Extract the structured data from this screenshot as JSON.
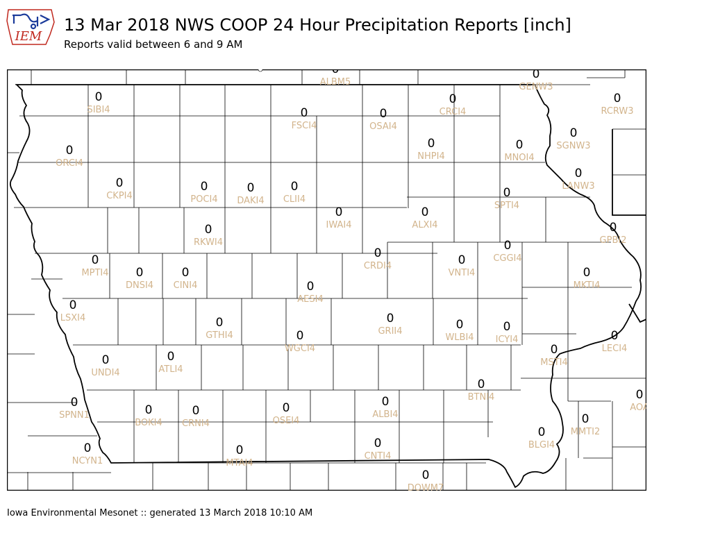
{
  "header": {
    "logo_text": "IEM",
    "title": "13 Mar 2018 NWS COOP 24 Hour Precipitation Reports [inch]",
    "subtitle": "Reports valid between 6 and 9 AM"
  },
  "footer": {
    "text": "Iowa Environmental Mesonet :: generated 13 March 2018 10:10 AM"
  },
  "colors": {
    "station_id": "#d2b48c",
    "value": "#000000",
    "logo_red": "#c0281e",
    "logo_blue": "#1a3a9a"
  },
  "stations": [
    {
      "id": "ALBM5",
      "value": "0"
    },
    {
      "id": "GENW3",
      "value": "0"
    },
    {
      "id": "SIBI4",
      "value": "0"
    },
    {
      "id": "FSCI4",
      "value": "0"
    },
    {
      "id": "OSAI4",
      "value": "0"
    },
    {
      "id": "CRCI4",
      "value": "0"
    },
    {
      "id": "RCRW3",
      "value": "0"
    },
    {
      "id": "ORCI4",
      "value": "0"
    },
    {
      "id": "NHPI4",
      "value": "0"
    },
    {
      "id": "MNOI4",
      "value": "0"
    },
    {
      "id": "SGNW3",
      "value": "0"
    },
    {
      "id": "LANW3",
      "value": "0"
    },
    {
      "id": "CKPI4",
      "value": "0"
    },
    {
      "id": "POCI4",
      "value": "0"
    },
    {
      "id": "DAKI4",
      "value": "0"
    },
    {
      "id": "CLII4",
      "value": "0"
    },
    {
      "id": "SPTI4",
      "value": "0"
    },
    {
      "id": "IWAI4",
      "value": "0"
    },
    {
      "id": "ALXI4",
      "value": "0"
    },
    {
      "id": "RKWI4",
      "value": "0"
    },
    {
      "id": "GPBI2",
      "value": "0"
    },
    {
      "id": "CRDI4",
      "value": "0"
    },
    {
      "id": "CGGI4",
      "value": "0"
    },
    {
      "id": "MPTI4",
      "value": "0"
    },
    {
      "id": "VNTI4",
      "value": "0"
    },
    {
      "id": "DNSI4",
      "value": "0"
    },
    {
      "id": "CINI4",
      "value": "0"
    },
    {
      "id": "MKTI4",
      "value": "0"
    },
    {
      "id": "AESI4",
      "value": "0"
    },
    {
      "id": "LSXI4",
      "value": "0"
    },
    {
      "id": "GRII4",
      "value": "0"
    },
    {
      "id": "GTHI4",
      "value": "0"
    },
    {
      "id": "WLBI4",
      "value": "0"
    },
    {
      "id": "ICYI4",
      "value": "0"
    },
    {
      "id": "WGCI4",
      "value": "0"
    },
    {
      "id": "LECI4",
      "value": "0"
    },
    {
      "id": "ATLI4",
      "value": "0"
    },
    {
      "id": "MSTI4",
      "value": "0"
    },
    {
      "id": "UNDI4",
      "value": "0"
    },
    {
      "id": "BTNI4",
      "value": "0"
    },
    {
      "id": "AOA",
      "value": "0"
    },
    {
      "id": "SPNN1",
      "value": "0"
    },
    {
      "id": "ALBI4",
      "value": "0"
    },
    {
      "id": "OSEI4",
      "value": "0"
    },
    {
      "id": "BOKI4",
      "value": "0"
    },
    {
      "id": "CRNI4",
      "value": "0"
    },
    {
      "id": "MMTI2",
      "value": "0"
    },
    {
      "id": "BLGI4",
      "value": "0"
    },
    {
      "id": "CNTI4",
      "value": "0"
    },
    {
      "id": "NCYN1",
      "value": "0"
    },
    {
      "id": "MTAI4",
      "value": "0"
    },
    {
      "id": "DOWM7",
      "value": "0"
    }
  ]
}
